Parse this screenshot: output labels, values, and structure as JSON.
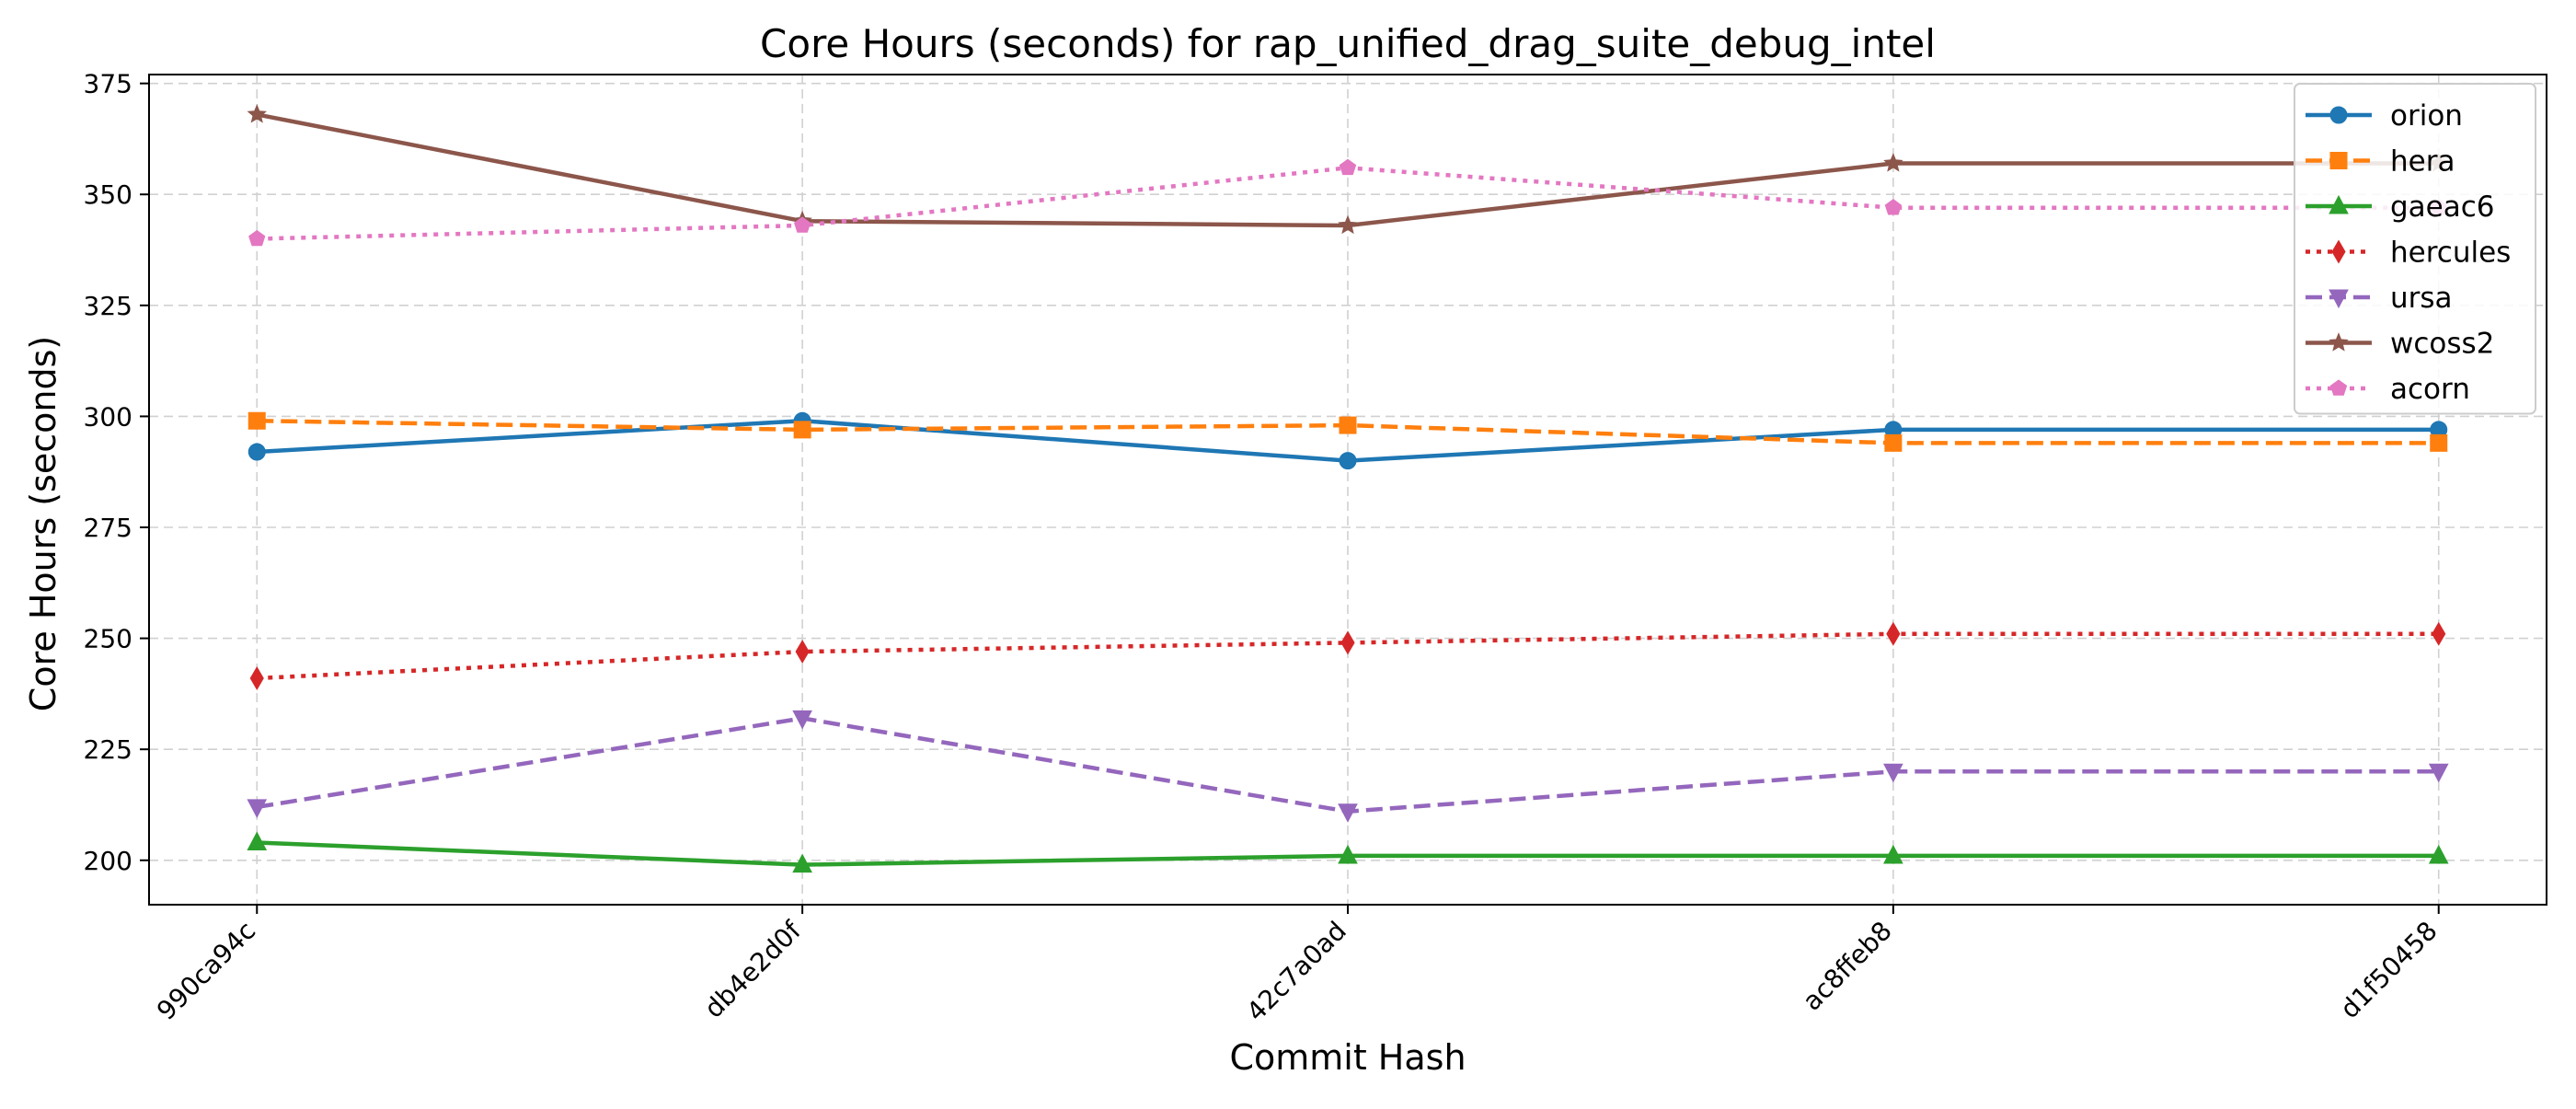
{
  "chart_data": {
    "type": "line",
    "title": "Core Hours (seconds) for rap_unified_drag_suite_debug_intel",
    "xlabel": "Commit Hash",
    "ylabel": "Core Hours (seconds)",
    "categories": [
      "990ca94c",
      "db4e2d0f",
      "42c7a0ad",
      "ac8ffeb8",
      "d1f50458"
    ],
    "ylim": [
      190,
      377
    ],
    "yticks": [
      200,
      225,
      250,
      275,
      300,
      325,
      350,
      375
    ],
    "grid": true,
    "legend_position": "top-right",
    "series": [
      {
        "name": "orion",
        "values": [
          292,
          299,
          290,
          297,
          297
        ],
        "color": "#1f77b4",
        "dash": "solid",
        "marker": "circle"
      },
      {
        "name": "hera",
        "values": [
          299,
          297,
          298,
          294,
          294
        ],
        "color": "#ff7f0e",
        "dash": "dashed",
        "marker": "square"
      },
      {
        "name": "gaeac6",
        "values": [
          204,
          199,
          201,
          201,
          201
        ],
        "color": "#2ca02c",
        "dash": "solid",
        "marker": "triangle-up"
      },
      {
        "name": "hercules",
        "values": [
          241,
          247,
          249,
          251,
          251
        ],
        "color": "#d62728",
        "dash": "dotted",
        "marker": "thin-diamond"
      },
      {
        "name": "ursa",
        "values": [
          212,
          232,
          211,
          220,
          220
        ],
        "color": "#9467bd",
        "dash": "dashed",
        "marker": "triangle-down"
      },
      {
        "name": "wcoss2",
        "values": [
          368,
          344,
          343,
          357,
          357
        ],
        "color": "#8c564b",
        "dash": "solid",
        "marker": "star"
      },
      {
        "name": "acorn",
        "values": [
          340,
          343,
          356,
          347,
          347
        ],
        "color": "#e377c2",
        "dash": "dotted",
        "marker": "pentagon"
      }
    ]
  }
}
